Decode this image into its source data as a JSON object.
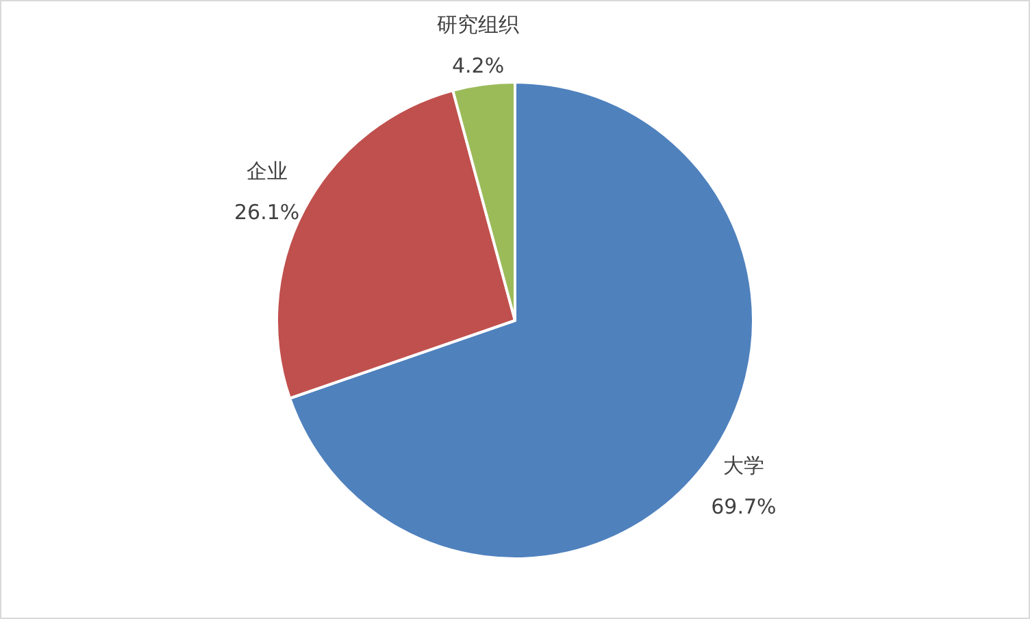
{
  "chart_data": {
    "type": "pie",
    "categories": [
      "大学",
      "企业",
      "研究组织"
    ],
    "values": [
      69.7,
      26.1,
      4.2
    ],
    "colors": [
      "#4f81bd",
      "#c0504d",
      "#9bbb59"
    ],
    "value_labels": [
      "69.7%",
      "26.1%",
      "4.2%"
    ],
    "legend": false
  }
}
